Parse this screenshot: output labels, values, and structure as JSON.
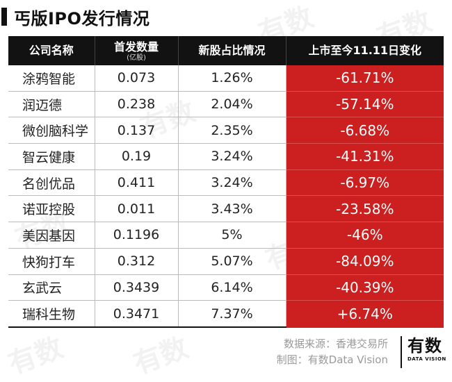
{
  "title": "丐版IPO发行情况",
  "headers": {
    "company": "公司名称",
    "issue_main": "首发数量",
    "issue_sub": "(亿股)",
    "ratio": "新股占比情况",
    "change": "上市至今11.11日变化"
  },
  "rows": [
    {
      "name": "涂鸦智能",
      "issue": "0.073",
      "ratio": "1.26%",
      "change": "-61.71%"
    },
    {
      "name": "润迈德",
      "issue": "0.238",
      "ratio": "2.04%",
      "change": "-57.14%"
    },
    {
      "name": "微创脑科学",
      "issue": "0.137",
      "ratio": "2.35%",
      "change": "-6.68%"
    },
    {
      "name": "智云健康",
      "issue": "0.19",
      "ratio": "3.24%",
      "change": "-41.31%"
    },
    {
      "name": "名创优品",
      "issue": "0.411",
      "ratio": "3.24%",
      "change": "-6.97%"
    },
    {
      "name": "诺亚控股",
      "issue": "0.011",
      "ratio": "3.43%",
      "change": "-23.58%"
    },
    {
      "name": "美因基因",
      "issue": "0.1196",
      "ratio": "5%",
      "change": "-46%"
    },
    {
      "name": "快狗打车",
      "issue": "0.312",
      "ratio": "5.07%",
      "change": "-84.09%"
    },
    {
      "name": "玄武云",
      "issue": "0.3439",
      "ratio": "6.14%",
      "change": "-40.39%"
    },
    {
      "name": "瑞科生物",
      "issue": "0.3471",
      "ratio": "7.37%",
      "change": "+6.74%"
    }
  ],
  "footer": {
    "source": "数据来源：香港交易所",
    "made_by": "制图：有数Data Vision",
    "logo_main": "有数",
    "logo_sub": "DATA VISION"
  },
  "watermark": "有数",
  "colors": {
    "header_bg": "#121212",
    "change_bg": "#cc1f1f"
  }
}
